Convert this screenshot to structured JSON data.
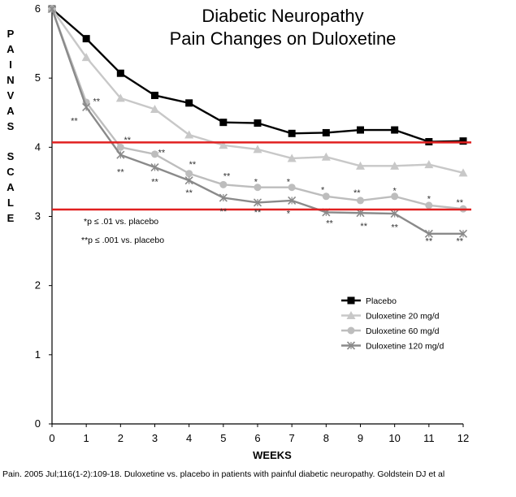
{
  "chart_data": {
    "type": "line",
    "title_lines": [
      "Diabetic Neuropathy",
      "Pain Changes on Duloxetine"
    ],
    "ylabel_words": [
      "PAIN",
      "VAS",
      "SCALE"
    ],
    "xlabel": "WEEKS",
    "ylim": [
      0,
      6
    ],
    "xlim": [
      0,
      12
    ],
    "y_ticks": [
      "0",
      "1",
      "2",
      "3",
      "4",
      "5",
      "6"
    ],
    "x_ticks": [
      "0",
      "1",
      "2",
      "3",
      "4",
      "5",
      "6",
      "7",
      "8",
      "9",
      "10",
      "11",
      "12"
    ],
    "x": [
      0,
      1,
      2,
      3,
      4,
      5,
      6,
      7,
      8,
      9,
      10,
      11,
      12
    ],
    "series": [
      {
        "name": "Placebo",
        "color": "#000000",
        "marker": "square",
        "values": [
          6.0,
          5.57,
          5.07,
          4.75,
          4.64,
          4.36,
          4.35,
          4.2,
          4.21,
          4.25,
          4.25,
          4.08,
          4.09
        ]
      },
      {
        "name": "Duloxetine 20 mg/d",
        "color": "#c8c8c8",
        "marker": "triangle",
        "values": [
          6.0,
          5.3,
          4.71,
          4.55,
          4.18,
          4.03,
          3.97,
          3.84,
          3.86,
          3.73,
          3.73,
          3.75,
          3.63
        ]
      },
      {
        "name": "Duloxetine 60 mg/d",
        "color": "#bdbdbd",
        "marker": "circle",
        "values": [
          6.0,
          4.65,
          4.0,
          3.9,
          3.62,
          3.46,
          3.42,
          3.42,
          3.29,
          3.23,
          3.29,
          3.16,
          3.11
        ]
      },
      {
        "name": "Duloxetine 120 mg/d",
        "color": "#8a8a8a",
        "marker": "x",
        "values": [
          6.0,
          4.58,
          3.89,
          3.71,
          3.52,
          3.27,
          3.2,
          3.23,
          3.06,
          3.05,
          3.04,
          2.75,
          2.75
        ]
      }
    ],
    "reference_lines": [
      {
        "y": 4.07,
        "color": "#e02020"
      },
      {
        "y": 3.1,
        "color": "#e02020"
      }
    ],
    "annotations": [
      {
        "text": "**",
        "x": 1.3,
        "y": 4.62
      },
      {
        "text": "**",
        "x": 0.65,
        "y": 4.34
      },
      {
        "text": "**",
        "x": 2.2,
        "y": 4.06
      },
      {
        "text": "**",
        "x": 3.2,
        "y": 3.88
      },
      {
        "text": "**",
        "x": 2.0,
        "y": 3.6
      },
      {
        "text": "**",
        "x": 4.1,
        "y": 3.71
      },
      {
        "text": "**",
        "x": 3.0,
        "y": 3.46
      },
      {
        "text": "**",
        "x": 4.0,
        "y": 3.3
      },
      {
        "text": "**",
        "x": 5.1,
        "y": 3.54
      },
      {
        "text": "*",
        "x": 5.95,
        "y": 3.46
      },
      {
        "text": "*",
        "x": 6.9,
        "y": 3.46
      },
      {
        "text": "**",
        "x": 5.0,
        "y": 3.03
      },
      {
        "text": "**",
        "x": 6.0,
        "y": 3.02
      },
      {
        "text": "*",
        "x": 6.9,
        "y": 3.0
      },
      {
        "text": "*",
        "x": 7.9,
        "y": 3.34
      },
      {
        "text": "**",
        "x": 8.9,
        "y": 3.3
      },
      {
        "text": "*",
        "x": 10.0,
        "y": 3.33
      },
      {
        "text": "*",
        "x": 11.0,
        "y": 3.21
      },
      {
        "text": "**",
        "x": 11.9,
        "y": 3.16
      },
      {
        "text": "**",
        "x": 8.1,
        "y": 2.86
      },
      {
        "text": "**",
        "x": 9.1,
        "y": 2.82
      },
      {
        "text": "**",
        "x": 10.0,
        "y": 2.8
      },
      {
        "text": "**",
        "x": 11.0,
        "y": 2.6
      },
      {
        "text": "**",
        "x": 11.9,
        "y": 2.6
      }
    ],
    "footnotes": [
      "*p ≤ .01 vs. placebo",
      "**p ≤ .001 vs. placebo"
    ],
    "legend_position": "lower-right",
    "grid": false
  },
  "citation": "Pain. 2005 Jul;116(1-2):109-18. Duloxetine vs. placebo in patients with painful diabetic neuropathy. Goldstein DJ et al"
}
